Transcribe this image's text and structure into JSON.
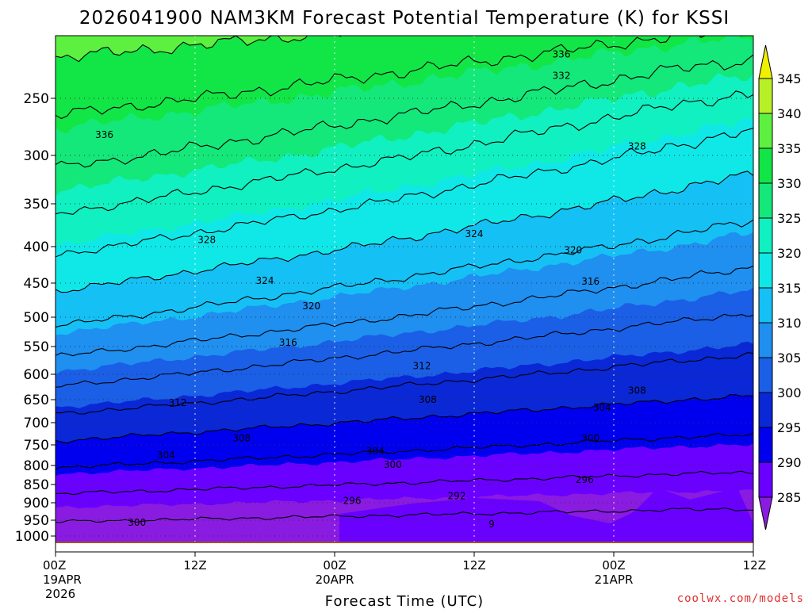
{
  "chart_data": {
    "type": "heatmap",
    "title": "2026041900 NAM3KM Forecast Potential Temperature (K) for KSSI",
    "xlabel": "Forecast Time (UTC)",
    "ylabel": "",
    "credit": "coolwx.com/models",
    "x_ticks": [
      {
        "hour": 0,
        "l1": "00Z",
        "l2": "19APR",
        "l3": "2026"
      },
      {
        "hour": 12,
        "l1": "12Z",
        "l2": "",
        "l3": ""
      },
      {
        "hour": 24,
        "l1": "00Z",
        "l2": "20APR",
        "l3": ""
      },
      {
        "hour": 36,
        "l1": "12Z",
        "l2": "",
        "l3": ""
      },
      {
        "hour": 48,
        "l1": "00Z",
        "l2": "21APR",
        "l3": ""
      },
      {
        "hour": 60,
        "l1": "12Z",
        "l2": "",
        "l3": ""
      }
    ],
    "xlim": [
      0,
      60
    ],
    "y_ticks": [
      "250",
      "300",
      "350",
      "400",
      "450",
      "500",
      "550",
      "600",
      "650",
      "700",
      "750",
      "800",
      "850",
      "900",
      "950",
      "1000"
    ],
    "ylim_hPa": [
      200,
      1010
    ],
    "colorbar": {
      "levels": [
        285,
        290,
        295,
        300,
        305,
        310,
        315,
        320,
        325,
        330,
        335,
        340,
        345
      ],
      "tick_labels": [
        "285",
        "290",
        "295",
        "300",
        "305",
        "310",
        "315",
        "320",
        "325",
        "330",
        "335",
        "340",
        "345"
      ],
      "colors": [
        "#8a1be0",
        "#6a00ff",
        "#0000ee",
        "#0a28d6",
        "#1a5fe6",
        "#1f8ff0",
        "#15c0f5",
        "#10e8e8",
        "#10f0c0",
        "#14e87a",
        "#12e646",
        "#5ef040",
        "#b8f028",
        "#f0f000"
      ]
    },
    "contour_labels": [
      {
        "hour": 43.5,
        "p": 215,
        "text": "336"
      },
      {
        "hour": 43.5,
        "p": 232,
        "text": "332"
      },
      {
        "hour": 4.2,
        "p": 282,
        "text": "336"
      },
      {
        "hour": 50.0,
        "p": 292,
        "text": "328"
      },
      {
        "hour": 13.0,
        "p": 392,
        "text": "328"
      },
      {
        "hour": 36.0,
        "p": 385,
        "text": "324"
      },
      {
        "hour": 44.5,
        "p": 405,
        "text": "320"
      },
      {
        "hour": 18.0,
        "p": 447,
        "text": "324"
      },
      {
        "hour": 46.0,
        "p": 448,
        "text": "316"
      },
      {
        "hour": 22.0,
        "p": 484,
        "text": "320"
      },
      {
        "hour": 20.0,
        "p": 543,
        "text": "316"
      },
      {
        "hour": 31.5,
        "p": 585,
        "text": "312"
      },
      {
        "hour": 10.5,
        "p": 657,
        "text": "312"
      },
      {
        "hour": 32.0,
        "p": 650,
        "text": "308"
      },
      {
        "hour": 50.0,
        "p": 632,
        "text": "308"
      },
      {
        "hour": 47.0,
        "p": 667,
        "text": "304"
      },
      {
        "hour": 16.0,
        "p": 735,
        "text": "308"
      },
      {
        "hour": 46.0,
        "p": 735,
        "text": "300"
      },
      {
        "hour": 9.5,
        "p": 775,
        "text": "304"
      },
      {
        "hour": 27.5,
        "p": 765,
        "text": "304"
      },
      {
        "hour": 29.0,
        "p": 798,
        "text": "300"
      },
      {
        "hour": 45.5,
        "p": 838,
        "text": "296"
      },
      {
        "hour": 34.5,
        "p": 882,
        "text": "292"
      },
      {
        "hour": 25.5,
        "p": 895,
        "text": "296"
      },
      {
        "hour": 7.0,
        "p": 958,
        "text": "300"
      },
      {
        "hour": 37.5,
        "p": 962,
        "text": "9"
      }
    ],
    "surface_color": "#a0522d"
  }
}
